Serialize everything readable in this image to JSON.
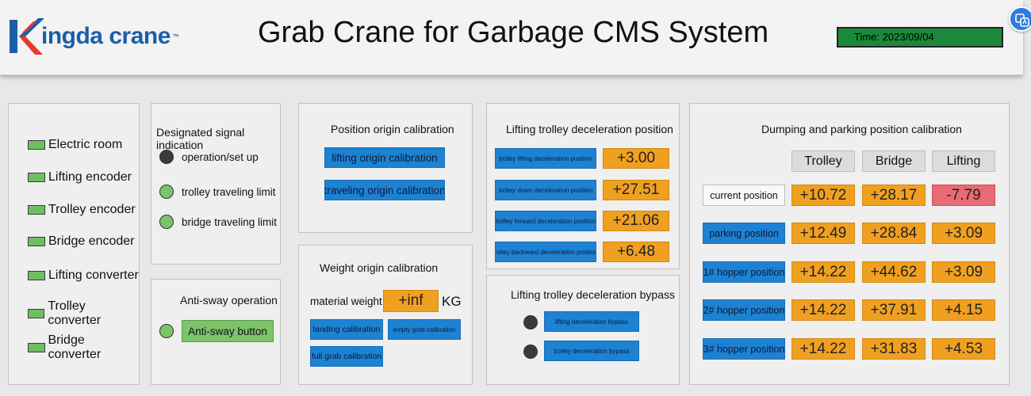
{
  "header": {
    "logo_text": "ingda crane",
    "logo_tm": "™",
    "title": "Grab Crane for Garbage CMS System",
    "time": "Time: 2023/09/04"
  },
  "colors": {
    "status_green": "#6fbf5f",
    "button_blue": "#1e82d2",
    "value_orange": "#f0a020",
    "value_alarm": "#e86a72",
    "time_green": "#1a8a3a"
  },
  "legend": {
    "items": [
      "Electric room",
      "Lifting encoder",
      "Trolley encoder",
      "Bridge encoder",
      "Lifting converter",
      "Trolley converter",
      "Bridge converter"
    ]
  },
  "signal": {
    "title": "Designated signal indication",
    "items": [
      {
        "label": "operation/set up",
        "state": "dark"
      },
      {
        "label": "trolley traveling limit",
        "state": "green"
      },
      {
        "label": "bridge traveling limit",
        "state": "green"
      }
    ]
  },
  "antisway": {
    "title": "Anti-sway operation",
    "button": "Anti-sway button"
  },
  "origin": {
    "title": "Position origin calibration",
    "lifting": "lifting origin calibration",
    "traveling": "traveling origin calibration"
  },
  "weight": {
    "title": "Weight origin calibration",
    "label": "material weight",
    "value": "+inf",
    "unit": "KG",
    "landing": "landing calibration",
    "empty": "empty grab calibration",
    "full": "full grab calibration"
  },
  "decel": {
    "title": "Lifting trolley deceleration position",
    "rows": [
      {
        "label": "trolley lifting deceleration position",
        "value": "+3.00"
      },
      {
        "label": "trolley down deceleration position",
        "value": "+27.51"
      },
      {
        "label": "trolley forward deceleration position",
        "value": "+21.06"
      },
      {
        "label": "trolley backward deceleration position",
        "value": "+6.48"
      }
    ]
  },
  "bypass": {
    "title": "Lifting trolley deceleration bypass",
    "lifting": "lifting deceleration bypass",
    "trolley": "trolley deceleration bypass"
  },
  "dumping": {
    "title": "Dumping and parking position calibration",
    "columns": [
      "Trolley",
      "Bridge",
      "Lifting"
    ],
    "rows": [
      {
        "label": "current position",
        "values": [
          "+10.72",
          "+28.17",
          "-7.79"
        ]
      },
      {
        "label": "parking position",
        "values": [
          "+12.49",
          "+28.84",
          "+3.09"
        ]
      },
      {
        "label": "1# hopper position",
        "values": [
          "+14.22",
          "+44.62",
          "+3.09"
        ]
      },
      {
        "label": "2# hopper position",
        "values": [
          "+14.22",
          "+37.91",
          "+4.15"
        ]
      },
      {
        "label": "3# hopper position",
        "values": [
          "+14.22",
          "+31.83",
          "+4.53"
        ]
      }
    ]
  }
}
